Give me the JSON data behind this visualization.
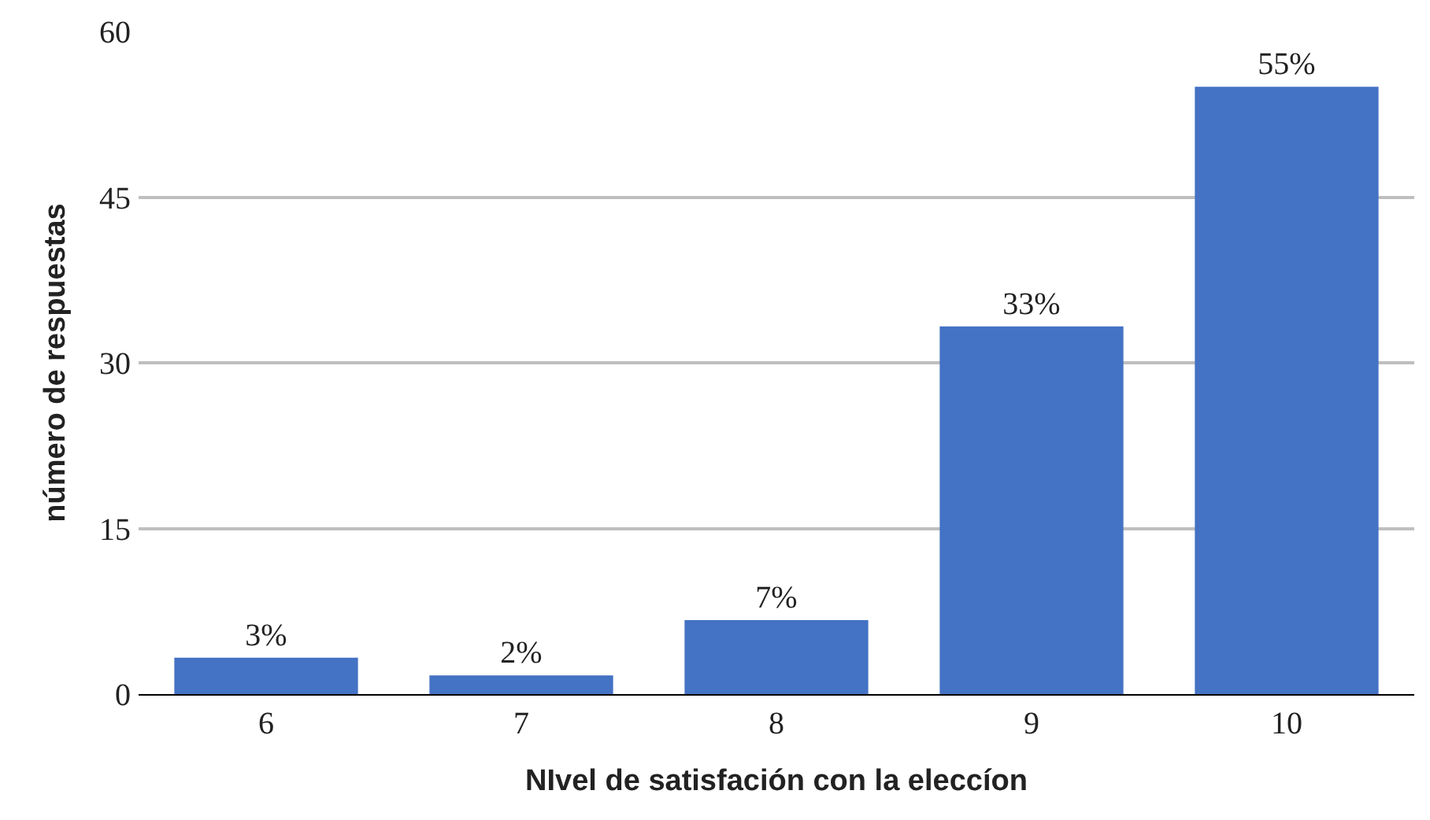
{
  "chart_data": {
    "type": "bar",
    "xlabel": "NIvel de satisfación con la eleccíon",
    "ylabel": "número de respuestas",
    "categories": [
      "6",
      "7",
      "8",
      "9",
      "10"
    ],
    "values": [
      3.3,
      1.7,
      6.7,
      33.3,
      55
    ],
    "value_labels": [
      "3%",
      "2%",
      "7%",
      "33%",
      "55%"
    ],
    "color": "#4472c4",
    "ylim": [
      0,
      60
    ],
    "yticks": [
      0,
      15,
      30,
      45,
      60
    ],
    "grid": "y"
  }
}
